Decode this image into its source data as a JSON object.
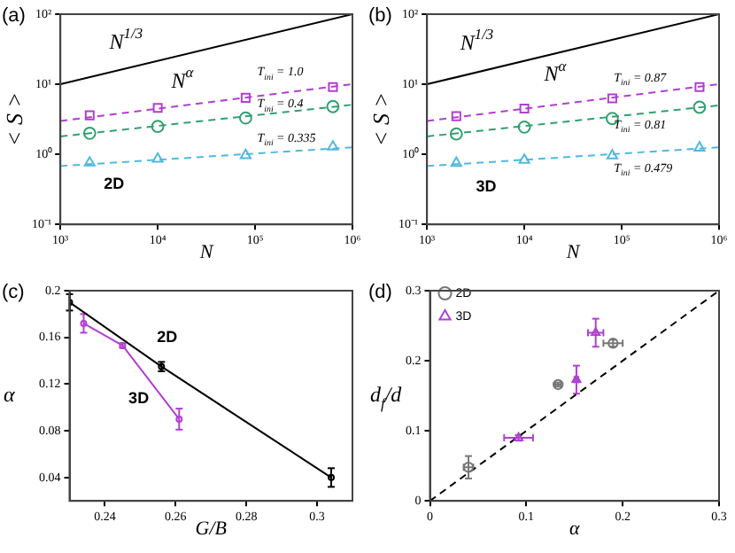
{
  "chart_data": [
    {
      "type": "scatter",
      "title": "(a)",
      "xlabel": "N",
      "ylabel": "< S >",
      "log": "xy",
      "xlim": [
        1000,
        1000000
      ],
      "ylim": [
        0.1,
        100
      ],
      "xticks": [
        {
          "value": 1000,
          "label": "10³"
        },
        {
          "value": 10000,
          "label": "10⁴"
        },
        {
          "value": 100000,
          "label": "10⁵"
        },
        {
          "value": 1000000,
          "label": "10⁶"
        }
      ],
      "yticks": [
        {
          "value": 0.1,
          "label": "10⁻¹"
        },
        {
          "value": 1,
          "label": "10⁰"
        },
        {
          "value": 10,
          "label": "10¹"
        },
        {
          "value": 100,
          "label": "10²"
        }
      ],
      "series": [
        {
          "type": "line",
          "color": "#000000",
          "marker": "none",
          "line_style": "solid",
          "x": [
            1000,
            1000000
          ],
          "values": [
            10,
            100
          ]
        },
        {
          "type": "line",
          "color": "#b040d0",
          "marker": "none",
          "line_style": "dashed",
          "x": [
            1000,
            1000000
          ],
          "values": [
            3.0,
            10
          ]
        },
        {
          "type": "line",
          "color": "#30a070",
          "marker": "none",
          "line_style": "dashed",
          "x": [
            1000,
            1000000
          ],
          "values": [
            1.8,
            5.1
          ]
        },
        {
          "type": "line",
          "color": "#50b8e0",
          "marker": "none",
          "line_style": "dashed",
          "x": [
            1000,
            1000000
          ],
          "values": [
            0.68,
            1.26
          ]
        },
        {
          "color": "#b040d0",
          "marker": "square",
          "x": [
            2000,
            10000,
            80000,
            630000
          ],
          "values": [
            3.6,
            4.6,
            6.4,
            9.1
          ]
        },
        {
          "color": "#30a070",
          "marker": "circle",
          "x": [
            2000,
            10000,
            80000,
            630000
          ],
          "values": [
            2.0,
            2.5,
            3.3,
            4.8
          ]
        },
        {
          "color": "#50b8e0",
          "marker": "triangle",
          "x": [
            2000,
            10000,
            80000,
            630000
          ],
          "values": [
            0.76,
            0.86,
            0.97,
            1.28
          ]
        }
      ],
      "annotations": [
        "N$^{1/3}$",
        "N$^{α}$",
        "T$_{ini}$ = 1.0",
        "T$_{ini}$ = 0.4",
        "T$_{ini}$ = 0.335",
        "2D"
      ]
    },
    {
      "type": "scatter",
      "title": "(b)",
      "xlabel": "N",
      "ylabel": "< S >",
      "log": "xy",
      "xlim": [
        1000,
        1000000
      ],
      "ylim": [
        0.1,
        100
      ],
      "xticks": [
        {
          "value": 1000,
          "label": "10³"
        },
        {
          "value": 10000,
          "label": "10⁴"
        },
        {
          "value": 100000,
          "label": "10⁵"
        },
        {
          "value": 1000000,
          "label": "10⁶"
        }
      ],
      "yticks": [
        {
          "value": 0.1,
          "label": "10⁻¹"
        },
        {
          "value": 1,
          "label": "10⁰"
        },
        {
          "value": 10,
          "label": "10¹"
        },
        {
          "value": 100,
          "label": "10²"
        }
      ],
      "series": [
        {
          "type": "line",
          "color": "#000000",
          "marker": "none",
          "line_style": "solid",
          "x": [
            1000,
            1000000
          ],
          "values": [
            10,
            100
          ]
        },
        {
          "type": "line",
          "color": "#b040d0",
          "marker": "none",
          "line_style": "dashed",
          "x": [
            1000,
            1000000
          ],
          "values": [
            3.0,
            10
          ]
        },
        {
          "type": "line",
          "color": "#30a070",
          "marker": "none",
          "line_style": "dashed",
          "x": [
            1000,
            1000000
          ],
          "values": [
            1.8,
            5.0
          ]
        },
        {
          "type": "line",
          "color": "#50b8e0",
          "marker": "none",
          "line_style": "dashed",
          "x": [
            1000,
            1000000
          ],
          "values": [
            0.68,
            1.26
          ]
        },
        {
          "color": "#b040d0",
          "marker": "square",
          "x": [
            2000,
            10000,
            80000,
            630000
          ],
          "values": [
            3.5,
            4.5,
            6.3,
            9.1
          ]
        },
        {
          "color": "#30a070",
          "marker": "circle",
          "x": [
            2000,
            10000,
            80000,
            630000
          ],
          "values": [
            1.95,
            2.45,
            3.25,
            4.7
          ]
        },
        {
          "color": "#50b8e0",
          "marker": "triangle",
          "x": [
            2000,
            10000,
            80000,
            630000
          ],
          "values": [
            0.75,
            0.83,
            0.96,
            1.24
          ]
        }
      ],
      "annotations": [
        "N$^{1/3}$",
        "N$^{α}$",
        "T$_{ini}$ = 0.87",
        "T$_{ini}$ = 0.81",
        "T$_{ini}$ = 0.479",
        "3D"
      ]
    },
    {
      "type": "line",
      "title": "(c)",
      "xlabel": "G/B",
      "ylabel": "α",
      "xlim": [
        0.23,
        0.31
      ],
      "ylim": [
        0.02,
        0.2
      ],
      "xticks": [
        0.24,
        0.26,
        0.28,
        0.3
      ],
      "yticks": [
        0.04,
        0.08,
        0.12,
        0.16,
        0.2
      ],
      "series": [
        {
          "color": "#000000",
          "marker": "circle",
          "line_style": "solid",
          "x": [
            0.23,
            0.256,
            0.304
          ],
          "values": [
            0.19,
            0.135,
            0.04
          ],
          "errors": [
            0.007,
            0.004,
            0.008
          ]
        },
        {
          "color": "#b040d0",
          "marker": "circle",
          "line_style": "solid",
          "x": [
            0.234,
            0.245,
            0.261
          ],
          "values": [
            0.172,
            0.153,
            0.09
          ],
          "errors": [
            0.008,
            0.002,
            0.009
          ]
        }
      ],
      "annotations": [
        "2D",
        "3D"
      ]
    },
    {
      "type": "scatter",
      "title": "(d)",
      "xlabel": "α",
      "ylabel": "d$_{f}$/d",
      "xlim": [
        0,
        0.3
      ],
      "ylim": [
        0,
        0.3
      ],
      "xticks": [
        0,
        0.1,
        0.2,
        0.3
      ],
      "yticks": [
        0,
        0.1,
        0.2,
        0.3
      ],
      "legend": "top left",
      "series": [
        {
          "name": "2D",
          "color": "#777777",
          "marker": "circle",
          "x": [
            0.04,
            0.133,
            0.19
          ],
          "values": [
            0.048,
            0.166,
            0.225
          ],
          "errors": [
            0.016,
            0.003,
            0.005
          ],
          "xerrors": [
            0.005,
            0.003,
            0.01
          ]
        },
        {
          "name": "3D",
          "color": "#b040d0",
          "marker": "triangle",
          "x": [
            0.092,
            0.152,
            0.172
          ],
          "values": [
            0.09,
            0.173,
            0.24
          ],
          "errors": [
            0.004,
            0.02,
            0.02
          ],
          "xerrors": [
            0.015,
            0.002,
            0.008
          ]
        },
        {
          "type": "line",
          "color": "#000000",
          "marker": "none",
          "line_style": "dashed",
          "x": [
            0,
            0.3
          ],
          "values": [
            0,
            0.3
          ]
        }
      ]
    }
  ]
}
